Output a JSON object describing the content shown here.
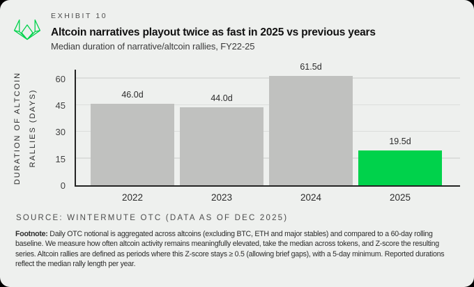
{
  "header": {
    "exhibit_label": "EXHIBIT 10",
    "title": "Altcoin narratives playout twice as fast in 2025 vs previous years",
    "subtitle": "Median duration of narrative/altcoin rallies, FY22-25"
  },
  "logo": {
    "name": "wintermute-logo",
    "color": "#00d24b"
  },
  "chart_data": {
    "type": "bar",
    "title": "Altcoin narratives playout twice as fast in 2025 vs previous years",
    "subtitle": "Median duration of narrative/altcoin rallies, FY22-25",
    "categories": [
      "2022",
      "2023",
      "2024",
      "2025"
    ],
    "values": [
      46.0,
      44.0,
      61.5,
      19.5
    ],
    "bar_labels": [
      "46.0d",
      "44.0d",
      "61.5d",
      "19.5d"
    ],
    "bar_colors": [
      "#c0c1bf",
      "#c0c1bf",
      "#c0c1bf",
      "#00d24b"
    ],
    "xlabel": "",
    "ylabel": "DURATION OF ALTCOIN RALLIES (DAYS)",
    "ylabel_lines": [
      "DURATION OF ALTCOIN",
      "RALLIES (DAYS)"
    ],
    "yticks": [
      0,
      15,
      30,
      45,
      60
    ],
    "ylim": [
      0,
      65
    ],
    "grid": "horizontal",
    "legend": "none"
  },
  "footer": {
    "source": "SOURCE: WINTERMUTE OTC (DATA AS OF DEC 2025)",
    "footnote_label": "Footnote:",
    "footnote_text": " Daily OTC notional is aggregated across altcoins (excluding BTC, ETH and major stables) and compared to a 60-day rolling baseline. We measure how often altcoin activity remains meaningfully elevated, take the median across tokens, and Z-score the resulting series. Altcoin rallies are defined as periods where this Z-score stays ≥ 0.5 (allowing brief gaps), with a 5-day minimum. Reported durations reflect the median rally length per year."
  },
  "colors": {
    "page_background": "#000000",
    "card_background": "#eef0ee",
    "bar_default": "#c0c1bf",
    "bar_highlight": "#00d24b",
    "axis": "#232323",
    "gridline": "#dcdedc"
  }
}
